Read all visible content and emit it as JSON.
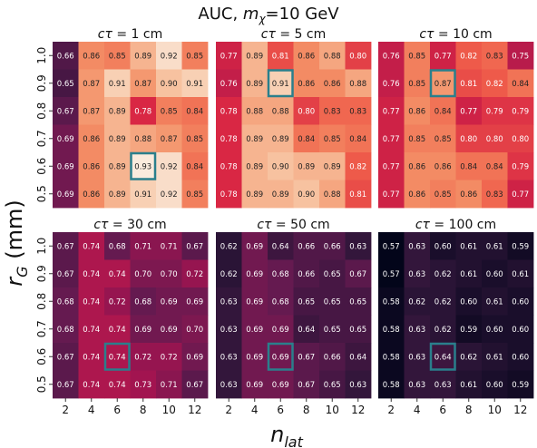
{
  "chart_data": {
    "type": "heatmap",
    "title": "AUC, m_χ=10 GeV",
    "title_prefix": "AUC, ",
    "title_m": "m",
    "title_sub": "χ",
    "title_suffix": "=10 GeV",
    "xlabel": "n",
    "xlabel_sub": "lat",
    "ylabel": "r",
    "ylabel_sub": "G",
    "ylabel_unit": " (mm)",
    "x_ticks": [
      "2",
      "4",
      "6",
      "8",
      "10",
      "12"
    ],
    "y_ticks": [
      "1.0",
      "0.9",
      "0.8",
      "0.7",
      "0.6",
      "0.5"
    ],
    "colormap": "rocket",
    "color_range": [
      0.57,
      0.93
    ],
    "highlight_color": "#2a7f8c",
    "panels": [
      {
        "title_prefix": "cτ = ",
        "title_value": "1 cm",
        "highlight": [
          4,
          3
        ],
        "values": [
          [
            0.66,
            0.86,
            0.85,
            0.89,
            0.92,
            0.85
          ],
          [
            0.65,
            0.87,
            0.91,
            0.87,
            0.9,
            0.91
          ],
          [
            0.67,
            0.87,
            0.89,
            0.78,
            0.85,
            0.84
          ],
          [
            0.69,
            0.86,
            0.89,
            0.88,
            0.87,
            0.85
          ],
          [
            0.69,
            0.86,
            0.89,
            0.93,
            0.92,
            0.84
          ],
          [
            0.69,
            0.86,
            0.89,
            0.91,
            0.92,
            0.85
          ]
        ]
      },
      {
        "title_prefix": "cτ = ",
        "title_value": "5 cm",
        "highlight": [
          1,
          2
        ],
        "values": [
          [
            0.77,
            0.89,
            0.81,
            0.86,
            0.88,
            0.8
          ],
          [
            0.76,
            0.89,
            0.91,
            0.86,
            0.86,
            0.88
          ],
          [
            0.78,
            0.88,
            0.88,
            0.8,
            0.83,
            0.83
          ],
          [
            0.78,
            0.89,
            0.89,
            0.84,
            0.85,
            0.84
          ],
          [
            0.78,
            0.89,
            0.9,
            0.89,
            0.89,
            0.82
          ],
          [
            0.78,
            0.89,
            0.89,
            0.9,
            0.88,
            0.81
          ]
        ]
      },
      {
        "title_prefix": "cτ = ",
        "title_value": "10 cm",
        "highlight": [
          1,
          2
        ],
        "values": [
          [
            0.76,
            0.85,
            0.77,
            0.82,
            0.83,
            0.75
          ],
          [
            0.76,
            0.85,
            0.87,
            0.81,
            0.82,
            0.84
          ],
          [
            0.77,
            0.86,
            0.84,
            0.77,
            0.79,
            0.79
          ],
          [
            0.77,
            0.85,
            0.85,
            0.8,
            0.8,
            0.8
          ],
          [
            0.77,
            0.86,
            0.86,
            0.84,
            0.84,
            0.79
          ],
          [
            0.77,
            0.86,
            0.85,
            0.86,
            0.83,
            0.77
          ]
        ]
      },
      {
        "title_prefix": "cτ = ",
        "title_value": "30 cm",
        "highlight": [
          4,
          2
        ],
        "values": [
          [
            0.67,
            0.74,
            0.68,
            0.71,
            0.71,
            0.67
          ],
          [
            0.67,
            0.74,
            0.74,
            0.7,
            0.7,
            0.72
          ],
          [
            0.68,
            0.74,
            0.72,
            0.68,
            0.69,
            0.69
          ],
          [
            0.68,
            0.74,
            0.74,
            0.69,
            0.69,
            0.7
          ],
          [
            0.67,
            0.74,
            0.74,
            0.72,
            0.72,
            0.69
          ],
          [
            0.67,
            0.74,
            0.74,
            0.73,
            0.71,
            0.67
          ]
        ]
      },
      {
        "title_prefix": "cτ = ",
        "title_value": "50 cm",
        "highlight": [
          4,
          2
        ],
        "values": [
          [
            0.62,
            0.69,
            0.64,
            0.66,
            0.66,
            0.63
          ],
          [
            0.62,
            0.69,
            0.68,
            0.66,
            0.65,
            0.67
          ],
          [
            0.63,
            0.69,
            0.68,
            0.65,
            0.65,
            0.65
          ],
          [
            0.63,
            0.69,
            0.69,
            0.64,
            0.65,
            0.65
          ],
          [
            0.63,
            0.69,
            0.69,
            0.67,
            0.66,
            0.64
          ],
          [
            0.63,
            0.69,
            0.69,
            0.67,
            0.65,
            0.63
          ]
        ]
      },
      {
        "title_prefix": "cτ = ",
        "title_value": "100 cm",
        "highlight": [
          4,
          2
        ],
        "values": [
          [
            0.57,
            0.63,
            0.6,
            0.61,
            0.61,
            0.59
          ],
          [
            0.57,
            0.63,
            0.62,
            0.61,
            0.6,
            0.61
          ],
          [
            0.58,
            0.62,
            0.62,
            0.6,
            0.61,
            0.6
          ],
          [
            0.58,
            0.63,
            0.62,
            0.59,
            0.6,
            0.6
          ],
          [
            0.58,
            0.63,
            0.64,
            0.62,
            0.61,
            0.6
          ],
          [
            0.58,
            0.63,
            0.63,
            0.61,
            0.6,
            0.59
          ]
        ]
      }
    ]
  }
}
